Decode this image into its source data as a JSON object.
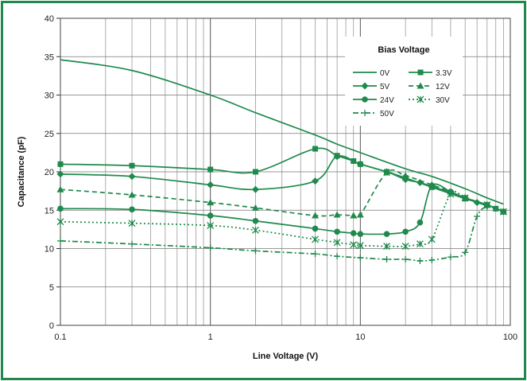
{
  "chart_data": {
    "type": "line",
    "xlabel": "Line Voltage (V)",
    "ylabel": "Capacitance (pF)",
    "x_scale": "log",
    "xlim": [
      0.1,
      100
    ],
    "ylim": [
      0,
      40
    ],
    "x_ticks": [
      "0.1",
      "1",
      "10",
      "100"
    ],
    "y_ticks": [
      "0",
      "5",
      "10",
      "15",
      "20",
      "25",
      "30",
      "35",
      "40"
    ],
    "grid": true,
    "legend_title": "Bias Voltage",
    "legend_position": "top-right",
    "line_color": "#1f8a4c",
    "series": [
      {
        "name": "0V",
        "marker": "none",
        "dash": "solid",
        "points": [
          [
            0.1,
            34.6
          ],
          [
            0.3,
            33.2
          ],
          [
            1,
            30.0
          ],
          [
            2,
            27.7
          ],
          [
            5,
            24.8
          ],
          [
            7,
            23.6
          ],
          [
            10,
            22.5
          ],
          [
            20,
            20.4
          ],
          [
            30,
            19.4
          ],
          [
            50,
            17.8
          ],
          [
            70,
            16.6
          ],
          [
            90,
            15.8
          ]
        ]
      },
      {
        "name": "3.3V",
        "marker": "square",
        "dash": "solid",
        "points": [
          [
            0.1,
            21.0
          ],
          [
            0.3,
            20.8
          ],
          [
            1,
            20.3
          ],
          [
            2,
            20.0
          ],
          [
            5,
            23.0
          ],
          [
            7,
            22.1
          ],
          [
            9,
            21.4
          ],
          [
            10,
            21.0
          ],
          [
            15,
            20.0
          ],
          [
            20,
            19.2
          ],
          [
            30,
            18.0
          ],
          [
            50,
            16.5
          ],
          [
            70,
            15.7
          ],
          [
            80,
            15.2
          ],
          [
            90,
            14.8
          ]
        ]
      },
      {
        "name": "5V",
        "marker": "diamond",
        "dash": "solid",
        "points": [
          [
            0.1,
            19.7
          ],
          [
            0.3,
            19.4
          ],
          [
            1,
            18.3
          ],
          [
            2,
            17.7
          ],
          [
            5,
            18.8
          ],
          [
            7,
            22.0
          ],
          [
            10,
            21.0
          ],
          [
            15,
            20.0
          ],
          [
            20,
            19.0
          ],
          [
            25,
            18.6
          ],
          [
            30,
            18.1
          ],
          [
            40,
            17.3
          ],
          [
            50,
            16.6
          ],
          [
            60,
            16.0
          ],
          [
            70,
            15.6
          ]
        ]
      },
      {
        "name": "12V",
        "marker": "triangle",
        "dash": "dashed",
        "points": [
          [
            0.1,
            17.7
          ],
          [
            0.3,
            17.0
          ],
          [
            1,
            16.0
          ],
          [
            2,
            15.3
          ],
          [
            5,
            14.3
          ],
          [
            7,
            14.4
          ],
          [
            9,
            14.3
          ],
          [
            10,
            14.4
          ],
          [
            15,
            19.9
          ],
          [
            20,
            19.5
          ],
          [
            30,
            18.3
          ],
          [
            40,
            17.4
          ],
          [
            50,
            16.6
          ],
          [
            70,
            15.7
          ],
          [
            90,
            14.8
          ]
        ]
      },
      {
        "name": "24V",
        "marker": "circle",
        "dash": "solid",
        "points": [
          [
            0.1,
            15.2
          ],
          [
            0.3,
            15.1
          ],
          [
            1,
            14.3
          ],
          [
            2,
            13.6
          ],
          [
            5,
            12.6
          ],
          [
            7,
            12.2
          ],
          [
            9,
            12.0
          ],
          [
            10,
            11.9
          ],
          [
            15,
            11.9
          ],
          [
            20,
            12.2
          ],
          [
            25,
            13.4
          ],
          [
            30,
            18.2
          ],
          [
            40,
            17.4
          ],
          [
            50,
            16.6
          ],
          [
            70,
            15.7
          ],
          [
            90,
            14.8
          ]
        ]
      },
      {
        "name": "30V",
        "marker": "asterisk",
        "dash": "dotted",
        "points": [
          [
            0.1,
            13.5
          ],
          [
            0.3,
            13.3
          ],
          [
            1,
            13.0
          ],
          [
            2,
            12.4
          ],
          [
            5,
            11.2
          ],
          [
            7,
            10.8
          ],
          [
            9,
            10.5
          ],
          [
            10,
            10.4
          ],
          [
            15,
            10.3
          ],
          [
            20,
            10.3
          ],
          [
            25,
            10.6
          ],
          [
            30,
            11.2
          ],
          [
            40,
            17.1
          ],
          [
            50,
            16.6
          ],
          [
            70,
            15.7
          ],
          [
            90,
            14.8
          ]
        ]
      },
      {
        "name": "50V",
        "marker": "plus",
        "dash": "dash-dot",
        "points": [
          [
            0.1,
            11.0
          ],
          [
            0.3,
            10.6
          ],
          [
            1,
            10.1
          ],
          [
            2,
            9.7
          ],
          [
            5,
            9.3
          ],
          [
            7,
            9.0
          ],
          [
            10,
            8.8
          ],
          [
            15,
            8.6
          ],
          [
            20,
            8.6
          ],
          [
            25,
            8.4
          ],
          [
            30,
            8.5
          ],
          [
            40,
            8.9
          ],
          [
            50,
            9.5
          ],
          [
            60,
            14.2
          ],
          [
            70,
            15.4
          ],
          [
            90,
            14.8
          ]
        ]
      }
    ]
  }
}
